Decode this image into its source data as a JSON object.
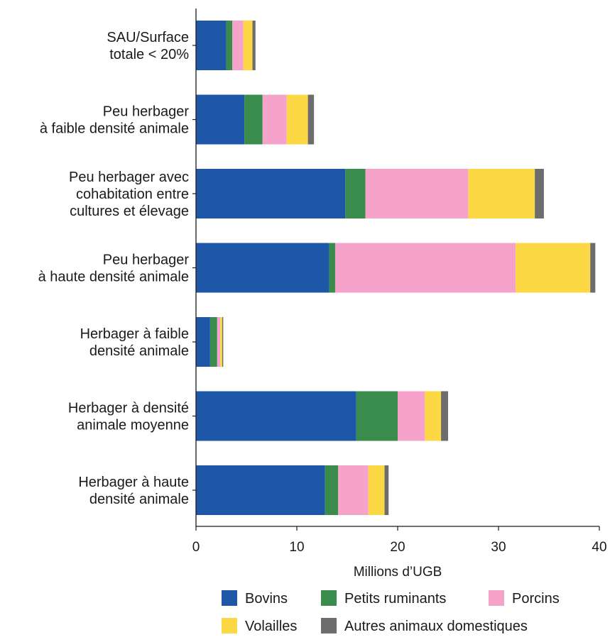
{
  "chart_data": {
    "type": "bar",
    "orientation": "horizontal",
    "stacked": true,
    "categories": [
      [
        "SAU/Surface",
        "totale < 20%"
      ],
      [
        "Peu herbager",
        "à faible densité animale"
      ],
      [
        "Peu herbager avec",
        "cohabitation entre",
        "cultures et élevage"
      ],
      [
        "Peu herbager",
        "à haute densité animale"
      ],
      [
        "Herbager à faible",
        "densité animale"
      ],
      [
        "Herbager à densité",
        "animale moyenne"
      ],
      [
        "Herbager à haute",
        "densité animale"
      ]
    ],
    "series": [
      {
        "name": "Bovins",
        "color": "#1f57a8",
        "values": [
          3.0,
          4.8,
          14.8,
          13.2,
          1.4,
          15.9,
          12.8
        ]
      },
      {
        "name": "Petits ruminants",
        "color": "#3a8c4c",
        "values": [
          0.6,
          1.8,
          2.0,
          0.6,
          0.7,
          4.1,
          1.3
        ]
      },
      {
        "name": "Porcins",
        "color": "#f6a3cc",
        "values": [
          1.1,
          2.4,
          10.2,
          17.9,
          0.3,
          2.7,
          3.0
        ]
      },
      {
        "name": "Volailles",
        "color": "#fcd944",
        "values": [
          0.9,
          2.1,
          6.6,
          7.4,
          0.2,
          1.6,
          1.6
        ]
      },
      {
        "name": "Autres animaux domestiques",
        "color": "#6d6d6d",
        "values": [
          0.3,
          0.6,
          0.9,
          0.5,
          0.1,
          0.7,
          0.4
        ]
      }
    ],
    "xlabel": "Millions  d’UGB",
    "ylabel": "",
    "xlim": [
      0,
      40
    ],
    "xticks": [
      "0",
      "10",
      "20",
      "30",
      "40"
    ],
    "grid": false,
    "legend_position": "bottom"
  }
}
